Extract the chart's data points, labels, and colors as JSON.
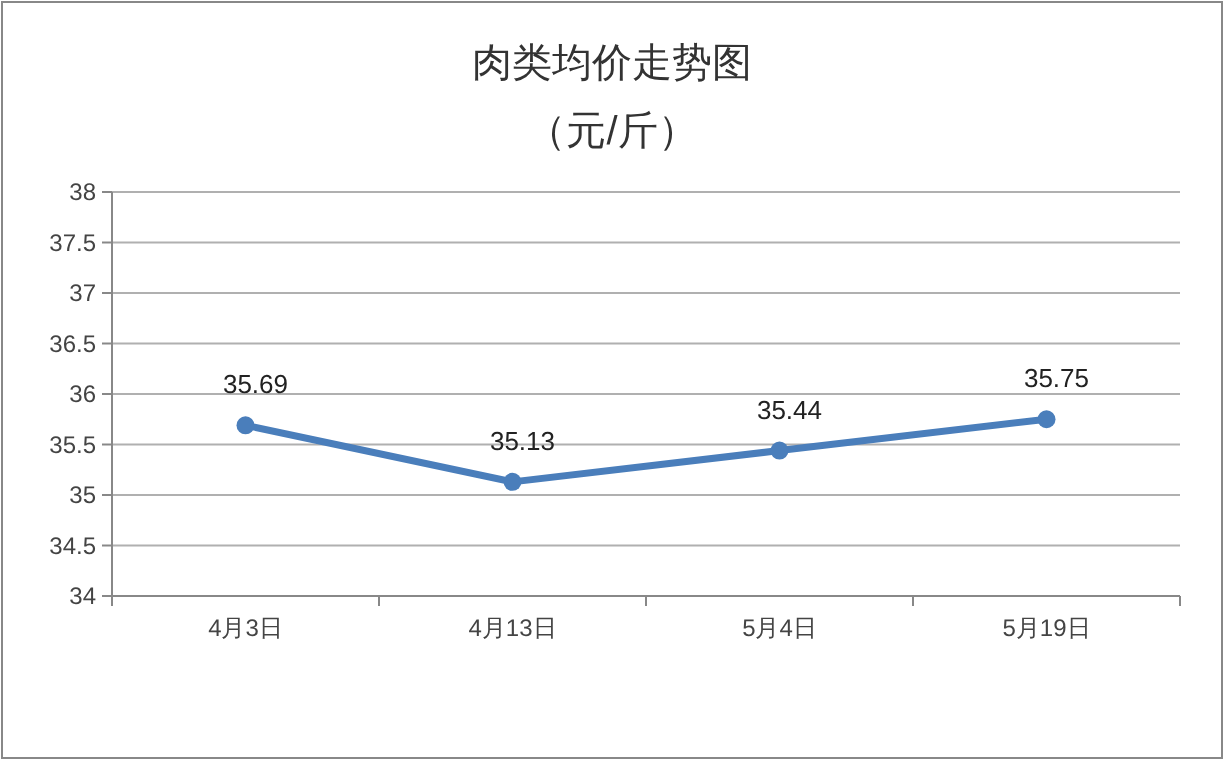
{
  "chart_data": {
    "type": "line",
    "title": "肉类均价走势图",
    "subtitle": "（元/斤）",
    "categories": [
      "4月3日",
      "4月13日",
      "5月4日",
      "5月19日"
    ],
    "series": [
      {
        "color": "#4a7ebb",
        "values": [
          35.69,
          35.13,
          35.44,
          35.75
        ]
      }
    ],
    "ylim": [
      34,
      38
    ],
    "yticks": [
      34,
      34.5,
      35,
      35.5,
      36,
      36.5,
      37,
      37.5,
      38
    ],
    "grid": "y",
    "marker": "circle",
    "line_style": "solid",
    "data_labels": true
  }
}
